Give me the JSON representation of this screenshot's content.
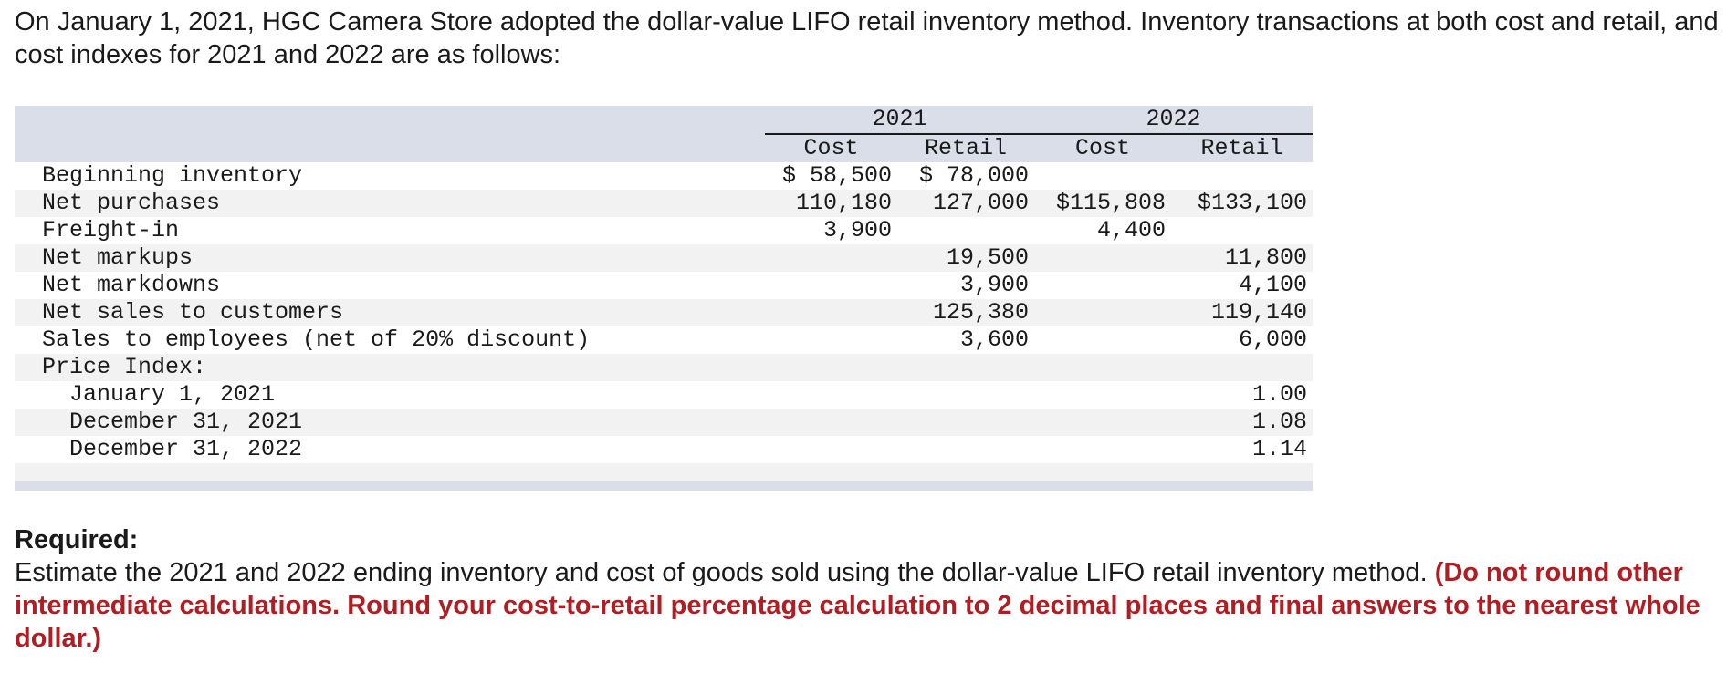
{
  "intro": "On January 1, 2021, HGC Camera Store adopted the dollar-value LIFO retail inventory method. Inventory transactions at both cost and retail, and cost indexes for 2021 and 2022 are as follows:",
  "table": {
    "years": [
      "2021",
      "2022"
    ],
    "subheaders": [
      "Cost",
      "Retail",
      "Cost",
      "Retail"
    ],
    "rows": [
      {
        "label": "Beginning inventory",
        "c21": "$ 58,500",
        "r21": "$ 78,000",
        "c22": "",
        "r22": ""
      },
      {
        "label": "Net purchases",
        "c21": "110,180",
        "r21": "127,000",
        "c22": "$115,808",
        "r22": "$133,100"
      },
      {
        "label": "Freight-in",
        "c21": "3,900",
        "r21": "",
        "c22": "4,400",
        "r22": ""
      },
      {
        "label": "Net markups",
        "c21": "",
        "r21": "19,500",
        "c22": "",
        "r22": "11,800"
      },
      {
        "label": "Net markdowns",
        "c21": "",
        "r21": "3,900",
        "c22": "",
        "r22": "4,100"
      },
      {
        "label": "Net sales to customers",
        "c21": "",
        "r21": "125,380",
        "c22": "",
        "r22": "119,140"
      },
      {
        "label": "Sales to employees (net of 20% discount)",
        "c21": "",
        "r21": "3,600",
        "c22": "",
        "r22": "6,000"
      },
      {
        "label": "Price Index:",
        "c21": "",
        "r21": "",
        "c22": "",
        "r22": ""
      },
      {
        "label": "January 1, 2021",
        "c21": "",
        "r21": "",
        "c22": "",
        "r22": "1.00"
      },
      {
        "label": "December 31, 2021",
        "c21": "",
        "r21": "",
        "c22": "",
        "r22": "1.08"
      },
      {
        "label": "December 31, 2022",
        "c21": "",
        "r21": "",
        "c22": "",
        "r22": "1.14"
      }
    ]
  },
  "required": {
    "heading": "Required:",
    "text": "Estimate the 2021 and 2022 ending inventory and cost of goods sold using the dollar-value LIFO retail inventory method.",
    "instruction": "(Do not round other intermediate calculations. Round your cost-to-retail percentage calculation to 2 decimal places and final answers to the nearest whole dollar.)"
  },
  "colors": {
    "header_band": "#d9dee8",
    "stripe": "#f2f2f2",
    "instruction_red": "#b01e23"
  }
}
